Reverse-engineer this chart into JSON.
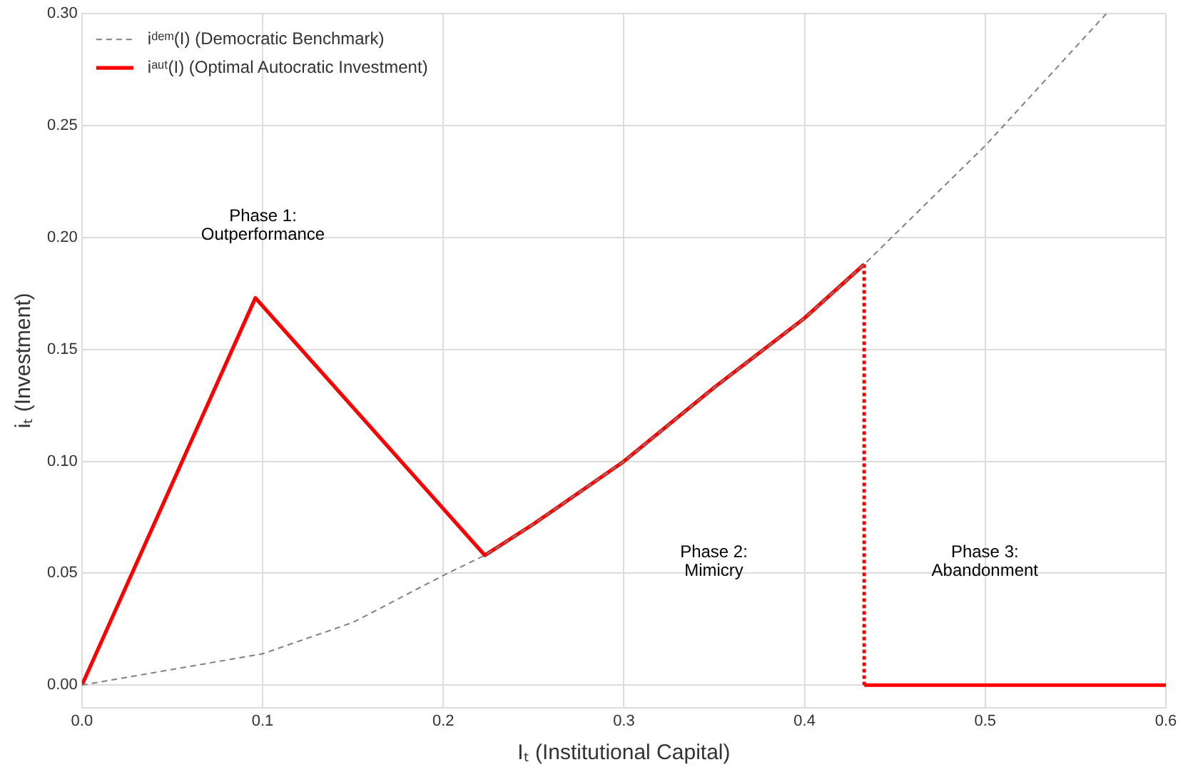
{
  "chart_data": {
    "type": "line",
    "xlabel": "Iₜ (Institutional Capital)",
    "ylabel": "iₜ (Investment)",
    "xlim": [
      0,
      0.6
    ],
    "ylim": [
      -0.01,
      0.3
    ],
    "xticks": [
      {
        "value": 0,
        "label": "0.0"
      },
      0.1,
      0.2,
      0.3,
      0.4,
      0.5,
      0.6
    ],
    "yticks": [
      {
        "value": 0,
        "label": "0.00"
      },
      0.05,
      {
        "value": 0.1,
        "label": "0.10"
      },
      0.15,
      {
        "value": 0.2,
        "label": "0.20"
      },
      0.25,
      {
        "value": 0.3,
        "label": "0.30"
      }
    ],
    "grid": true,
    "legend": "top left",
    "marker": "none",
    "series": [
      {
        "name": "iᵈᵉᵐ(I) (Democratic Benchmark)",
        "color": "#808080",
        "line_style": "dashed",
        "x": [
          0,
          0.05,
          0.1,
          0.15,
          0.2,
          0.223,
          0.25,
          0.3,
          0.35,
          0.4,
          0.433,
          0.5,
          0.567
        ],
        "values": [
          0,
          0.007,
          0.014,
          0.028,
          0.049,
          0.058,
          0.072,
          0.1,
          0.133,
          0.164,
          0.188,
          0.241,
          0.3
        ]
      },
      {
        "name": "iᵃᵘᵗ(I) (Optimal Autocratic Investment)",
        "color": "#ff0000",
        "line_style": "solid",
        "x": [
          0,
          0.096,
          0.223,
          0.25,
          0.3,
          0.35,
          0.4,
          0.433
        ],
        "values": [
          0,
          0.173,
          0.058,
          0.072,
          0.1,
          0.133,
          0.164,
          0.188
        ]
      },
      {
        "color": "#fa0000",
        "line_style": "dotted",
        "x": [
          0.433,
          0.433
        ],
        "values": [
          0.188,
          0
        ]
      },
      {
        "color": "#ff0000",
        "line_style": "solid",
        "x": [
          0.433,
          0.6
        ],
        "values": [
          0,
          0
        ]
      }
    ],
    "annotations": [
      "Phase 1:\nOutperformance",
      "Phase 2:\nMimicry",
      "Phase 3:\nAbandonment"
    ]
  }
}
